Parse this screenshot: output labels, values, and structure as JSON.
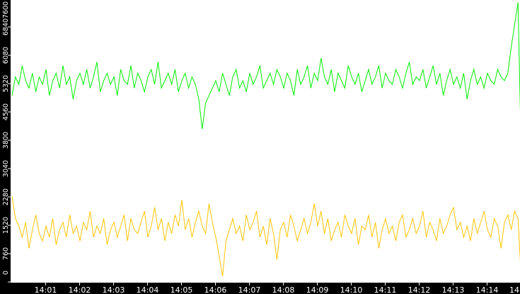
{
  "chart_data": {
    "type": "line",
    "ylim": [
      0,
      7600
    ],
    "y_ticks": [
      "0",
      "760",
      "1520",
      "2280",
      "3040",
      "3800",
      "4560",
      "5320",
      "6080",
      "6840",
      "7600"
    ],
    "x_ticks": [
      "14:01",
      "14:02",
      "14:03",
      "14:04",
      "14:05",
      "14:06",
      "14:07",
      "14:08",
      "14:09",
      "14:10",
      "14:11",
      "14:12",
      "14:13",
      "14:14",
      "14"
    ],
    "x_start": "14:00:00",
    "interval_seconds": 6,
    "grid": false,
    "series": [
      {
        "color": "#00ee00",
        "values": [
          5000,
          5500,
          5300,
          5800,
          5400,
          5200,
          5600,
          5100,
          5500,
          5300,
          5700,
          5000,
          5400,
          5600,
          5200,
          5800,
          5300,
          5500,
          4900,
          5400,
          5600,
          5300,
          5700,
          5200,
          5500,
          5900,
          5100,
          5400,
          5600,
          5300,
          5500,
          5000,
          5700,
          5400,
          5300,
          5800,
          5200,
          5600,
          5400,
          5100,
          5500,
          5700,
          5300,
          5900,
          5200,
          5400,
          5600,
          5300,
          5700,
          5100,
          5400,
          5600,
          5200,
          5500,
          5300,
          4900,
          4100,
          4800,
          5000,
          5200,
          5400,
          5100,
          5600,
          5300,
          5000,
          5500,
          5700,
          5200,
          5400,
          5100,
          5600,
          5300,
          5500,
          5800,
          5200,
          5400,
          5600,
          5300,
          5700,
          5500,
          5200,
          5600,
          5400,
          5000,
          5700,
          5300,
          5500,
          5800,
          5200,
          5600,
          5400,
          6000,
          5500,
          5300,
          5700,
          5100,
          5600,
          5400,
          5200,
          5800,
          5500,
          5300,
          5600,
          5100,
          5400,
          5700,
          5300,
          5500,
          5800,
          5200,
          5600,
          5400,
          5300,
          5700,
          5500,
          5200,
          5600,
          5900,
          5300,
          5500,
          5400,
          5700,
          5200,
          5500,
          5800,
          5300,
          5600,
          5000,
          5400,
          5700,
          5300,
          5500,
          5200,
          5600,
          4900,
          5400,
          5700,
          5300,
          5500,
          5200,
          5600,
          5400,
          5300,
          5700,
          5500,
          5400,
          5600,
          6300,
          6900,
          7500,
          3200
        ]
      },
      {
        "color": "#ffc400",
        "values": [
          2300,
          1700,
          1500,
          1200,
          1600,
          900,
          1400,
          1800,
          1300,
          1100,
          1500,
          1200,
          1700,
          1000,
          1400,
          1600,
          1200,
          1800,
          1300,
          1500,
          1100,
          1600,
          1400,
          1900,
          1200,
          1500,
          1300,
          1700,
          1000,
          1400,
          1600,
          1200,
          1500,
          1800,
          1100,
          1700,
          1400,
          1300,
          1600,
          1900,
          1200,
          1500,
          2000,
          1400,
          1700,
          1100,
          1600,
          1300,
          1800,
          1500,
          2200,
          1400,
          1700,
          1200,
          1600,
          1900,
          1500,
          1300,
          2100,
          1600,
          1200,
          700,
          150,
          1100,
          1400,
          1700,
          1300,
          1500,
          1100,
          1800,
          1400,
          1600,
          1900,
          1200,
          1500,
          1000,
          1700,
          1300,
          600,
          1400,
          1600,
          1200,
          1800,
          1500,
          1100,
          1400,
          1700,
          1300,
          1600,
          2100,
          1500,
          1900,
          1300,
          1700,
          1100,
          1400,
          1600,
          1200,
          1800,
          1500,
          1300,
          1700,
          1000,
          1500,
          1400,
          1800,
          1200,
          1600,
          900,
          1400,
          1700,
          1300,
          1500,
          1100,
          1600,
          1800,
          1200,
          1400,
          1700,
          1300,
          1500,
          1900,
          1200,
          1600,
          1400,
          1100,
          1700,
          1300,
          1500,
          1800,
          2000,
          1400,
          1600,
          1200,
          1500,
          1100,
          1700,
          1300,
          1600,
          1900,
          1400,
          1200,
          1700,
          1500,
          900,
          1600,
          1800,
          1400,
          1900,
          1700,
          0
        ]
      }
    ]
  }
}
